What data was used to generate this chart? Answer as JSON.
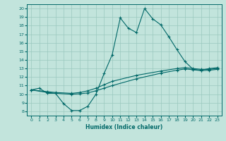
{
  "xlabel": "Humidex (Indice chaleur)",
  "xlim": [
    -0.5,
    23.5
  ],
  "ylim": [
    7.5,
    20.5
  ],
  "xticks": [
    0,
    1,
    2,
    3,
    4,
    5,
    6,
    7,
    8,
    9,
    10,
    11,
    12,
    13,
    14,
    15,
    16,
    17,
    18,
    19,
    20,
    21,
    22,
    23
  ],
  "yticks": [
    8,
    9,
    10,
    11,
    12,
    13,
    14,
    15,
    16,
    17,
    18,
    19,
    20
  ],
  "bg_color": "#c2e4dc",
  "grid_color": "#9ac8be",
  "line_color": "#006868",
  "series1_x": [
    0,
    1,
    2,
    3,
    4,
    5,
    6,
    7,
    8,
    9,
    10,
    11,
    12,
    13,
    14,
    15,
    16,
    17,
    18,
    19,
    20,
    21,
    22,
    23
  ],
  "series1_y": [
    10.5,
    10.7,
    10.1,
    10.1,
    8.9,
    8.1,
    8.1,
    8.6,
    10.0,
    12.4,
    14.6,
    18.9,
    17.7,
    17.2,
    20.0,
    18.8,
    18.1,
    16.7,
    15.2,
    13.8,
    12.9,
    12.8,
    13.0,
    13.1
  ],
  "series2_x": [
    0,
    2,
    3,
    5,
    6,
    7,
    8,
    9,
    10,
    13,
    16,
    18,
    19,
    20,
    21,
    22,
    23
  ],
  "series2_y": [
    10.5,
    10.3,
    10.2,
    10.1,
    10.2,
    10.4,
    10.7,
    11.1,
    11.5,
    12.2,
    12.7,
    13.0,
    13.1,
    13.0,
    12.9,
    12.9,
    13.0
  ],
  "series3_x": [
    0,
    2,
    3,
    5,
    6,
    7,
    8,
    9,
    10,
    13,
    16,
    18,
    19,
    20,
    21,
    22,
    23
  ],
  "series3_y": [
    10.5,
    10.2,
    10.1,
    10.0,
    10.05,
    10.15,
    10.4,
    10.7,
    11.0,
    11.8,
    12.45,
    12.8,
    12.95,
    12.85,
    12.75,
    12.8,
    12.9
  ]
}
